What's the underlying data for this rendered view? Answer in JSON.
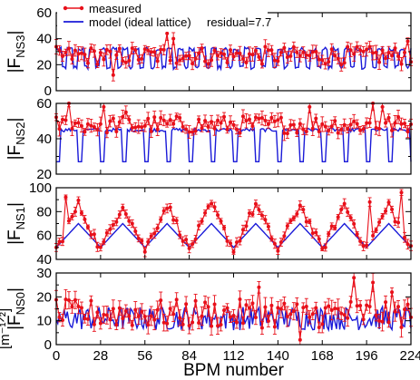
{
  "chart_data": {
    "type": "line",
    "x_label": "BPM number",
    "y_unit_label": "[m⁻¹ᐟ²]",
    "x_range": [
      0,
      224
    ],
    "x_ticks": [
      "0",
      "28",
      "56",
      "84",
      "112",
      "140",
      "168",
      "196",
      "224"
    ],
    "x_tick_values": [
      0,
      28,
      56,
      84,
      112,
      140,
      168,
      196,
      224
    ],
    "legend": {
      "measured": "measured",
      "model": "model (ideal lattice)",
      "residual": "residual=7.7"
    },
    "colors": {
      "measured": "#e8101a",
      "model": "#1a1ad8",
      "axis": "#000000"
    },
    "panels": [
      {
        "id": "ns3",
        "ylabel_main": "|F",
        "ylabel_sub": "NS3",
        "ylabel_end": "|",
        "ylim": [
          0,
          60
        ],
        "yticks": [
          0,
          20,
          40,
          60
        ],
        "model": {
          "kind": "square",
          "low": 18,
          "high": 32,
          "period": 7,
          "duty": 0.5,
          "jitter": 3
        },
        "measured": {
          "mean": 27,
          "spread": 7,
          "err": 4,
          "outliers": [
            [
              70,
              44
            ],
            [
              74,
              40
            ],
            [
              36,
              12
            ],
            [
              222,
              38
            ]
          ]
        }
      },
      {
        "id": "ns2",
        "ylabel_main": "|F",
        "ylabel_sub": "NS2",
        "ylabel_end": "|",
        "ylim": [
          20,
          60
        ],
        "yticks": [
          20,
          40,
          60
        ],
        "model": {
          "kind": "dips",
          "high": 45,
          "low": 27,
          "period": 14,
          "duty": 0.18
        },
        "measured": {
          "mean": 48,
          "spread": 5,
          "err": 3,
          "outliers": [
            [
              8,
              62
            ],
            [
              30,
              58
            ],
            [
              44,
              55
            ],
            [
              200,
              62
            ],
            [
              205,
              58
            ],
            [
              160,
              58
            ]
          ]
        }
      },
      {
        "id": "ns1",
        "ylabel_main": "|F",
        "ylabel_sub": "NS1",
        "ylabel_end": "|",
        "ylim": [
          40,
          100
        ],
        "yticks": [
          40,
          60,
          80,
          100
        ],
        "model": {
          "kind": "triangle",
          "low": 50,
          "high": 70,
          "period": 28
        },
        "measured": {
          "kind": "triangle",
          "low": 48,
          "high": 86,
          "period": 28,
          "spread": 4,
          "err": 3,
          "outliers": [
            [
              198,
              88
            ],
            [
              218,
              96
            ],
            [
              5,
              92
            ]
          ]
        }
      },
      {
        "id": "ns0",
        "ylabel_main": "|F",
        "ylabel_sub": "NS0",
        "ylabel_end": "|",
        "ylim": [
          0,
          30
        ],
        "yticks": [
          0,
          10,
          20,
          30
        ],
        "model": {
          "kind": "noise",
          "mean": 11,
          "spread": 5
        },
        "measured": {
          "mean": 13,
          "spread": 6,
          "err": 3,
          "outliers": [
            [
              188,
              28
            ],
            [
              200,
              26
            ],
            [
              128,
              24
            ],
            [
              154,
              2
            ],
            [
              212,
              22
            ]
          ]
        }
      }
    ]
  }
}
